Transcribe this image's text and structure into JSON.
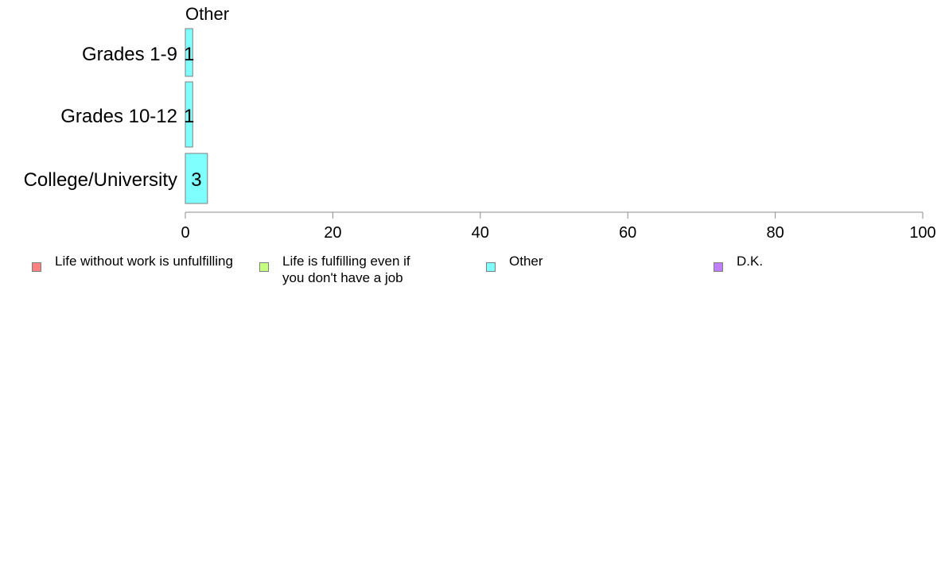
{
  "chart_data": {
    "type": "bar",
    "orientation": "horizontal",
    "title": "Other",
    "categories": [
      "Grades 1-9",
      "Grades 10-12",
      "College/University"
    ],
    "series": [
      {
        "name": "Other",
        "values": [
          1,
          1,
          3
        ],
        "color": "#80FFFF"
      }
    ],
    "data_labels": [
      "1",
      "1",
      "3"
    ],
    "xlim": [
      0,
      100
    ],
    "xticks": [
      0,
      20,
      40,
      60,
      80,
      100
    ],
    "xtick_labels": [
      "0",
      "20",
      "40",
      "60",
      "80",
      "100"
    ],
    "grid": false,
    "legend_position": "bottom",
    "legend": [
      {
        "label": "Life without work is unfulfilling",
        "color": "#FF8080"
      },
      {
        "label": "Life is fulfilling even if you don't have a job",
        "color": "#C6FF80"
      },
      {
        "label": "Other",
        "color": "#80FFFF"
      },
      {
        "label": "D.K.",
        "color": "#BF80FF"
      }
    ]
  }
}
